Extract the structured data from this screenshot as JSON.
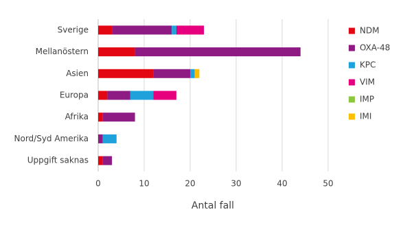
{
  "chart_data": {
    "type": "stacked_bar_horizontal",
    "x_label": "Antal fall",
    "categories": [
      "Sverige",
      "Mellanöstern",
      "Asien",
      "Europa",
      "Afrika",
      "Nord/Syd Amerika",
      "Uppgift saknas"
    ],
    "series": [
      {
        "name": "NDM",
        "color": "#e30613",
        "values": [
          3,
          8,
          12,
          2,
          1,
          0,
          1
        ]
      },
      {
        "name": "OXA-48",
        "color": "#8e1b84",
        "values": [
          13,
          36,
          8,
          5,
          7,
          1,
          2
        ]
      },
      {
        "name": "KPC",
        "color": "#1fa2dc",
        "values": [
          1,
          0,
          1,
          5,
          0,
          3,
          0
        ]
      },
      {
        "name": "VIM",
        "color": "#e6007e",
        "values": [
          6,
          0,
          0,
          5,
          0,
          0,
          0
        ]
      },
      {
        "name": "IMP",
        "color": "#8dc63f",
        "values": [
          0,
          0,
          0,
          0,
          0,
          0,
          0
        ]
      },
      {
        "name": "IMI",
        "color": "#fbbf00",
        "values": [
          0,
          0,
          1,
          0,
          0,
          0,
          0
        ]
      }
    ],
    "xlim": [
      0,
      50
    ],
    "xticks": [
      0,
      10,
      20,
      30,
      40,
      50
    ],
    "grid": true
  }
}
